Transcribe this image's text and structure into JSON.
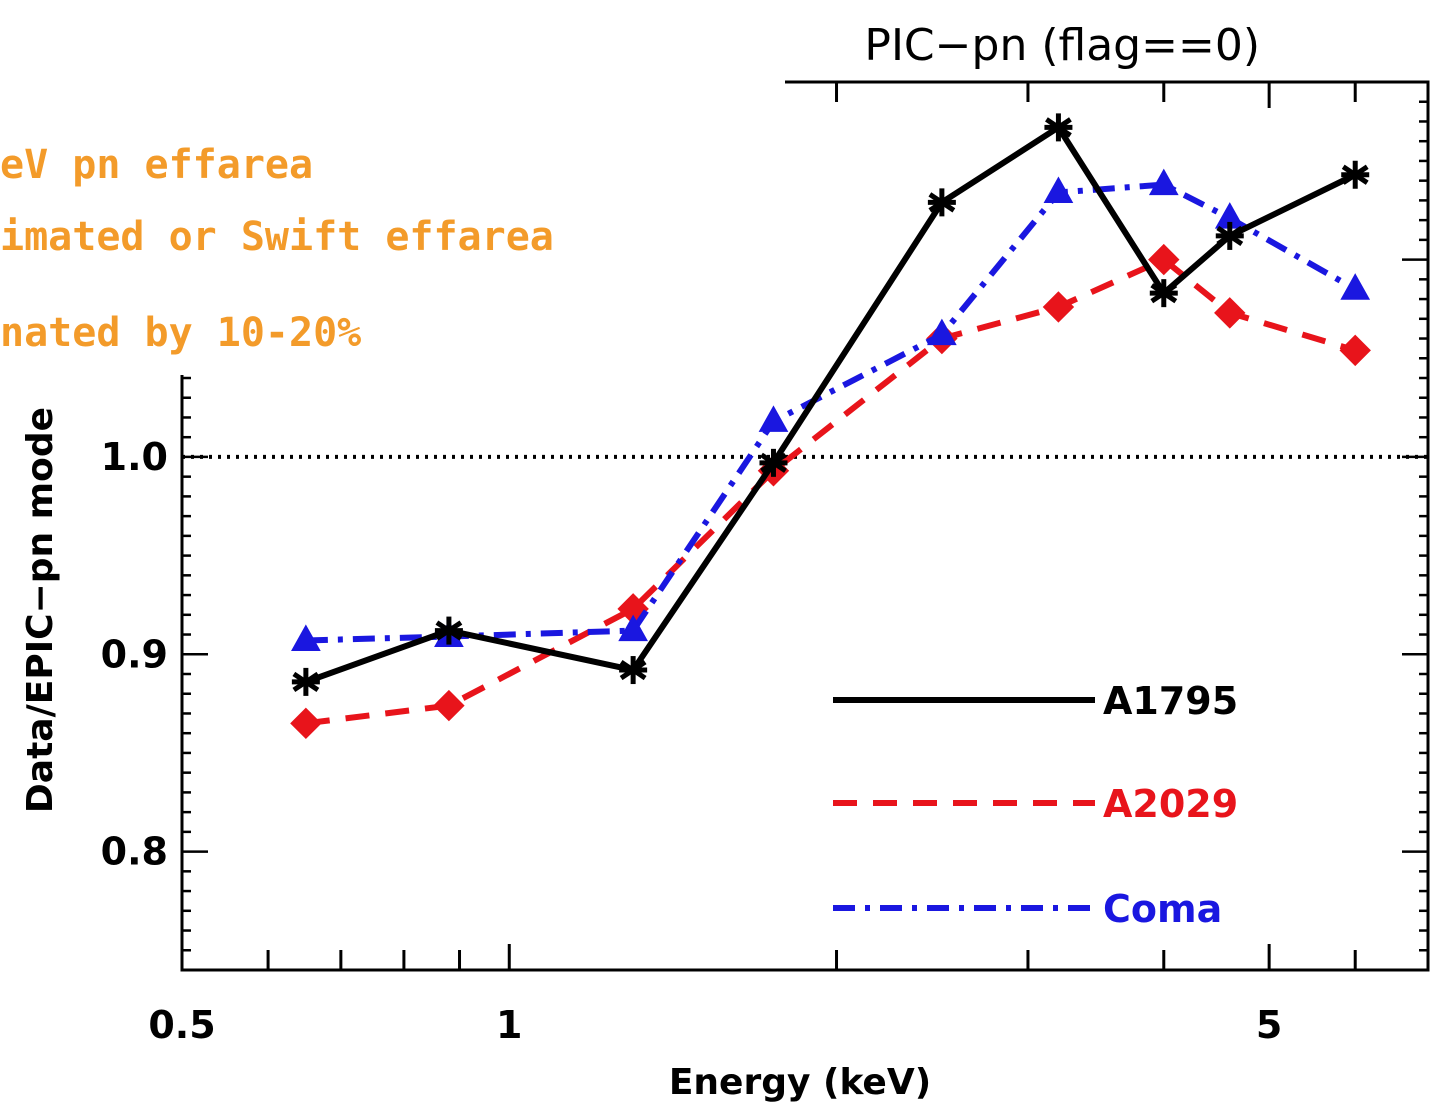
{
  "annotations": [
    "eV pn effarea",
    "imated or Swift effarea",
    "nated by 10-20%"
  ],
  "chart_data": {
    "type": "line",
    "title": "PIC−pn (flag==0)",
    "xlabel": "Energy (keV)",
    "ylabel": "Data/EPIC−pn mode",
    "xscale": "log",
    "xlim": [
      0.5,
      7.0
    ],
    "ylim": [
      0.74,
      1.19
    ],
    "x_ticks": [
      0.5,
      1,
      5
    ],
    "x_tick_labels": [
      "0.5",
      "1",
      "5"
    ],
    "y_ticks": [
      0.8,
      0.9,
      1.0
    ],
    "y_tick_labels": [
      "0.8",
      "0.9",
      "1.0"
    ],
    "reference_line": 1.0,
    "legend_position": "bottom-right",
    "x": [
      0.65,
      0.88,
      1.3,
      1.75,
      2.5,
      3.2,
      4.0,
      4.6,
      6.0
    ],
    "series": [
      {
        "name": "A1795",
        "color": "#000000",
        "dash": "solid",
        "marker": "star",
        "values": [
          0.886,
          0.912,
          0.892,
          0.997,
          1.129,
          1.167,
          1.083,
          1.112,
          1.143
        ]
      },
      {
        "name": "A2029",
        "color": "#e8141b",
        "dash": "dashed",
        "marker": "diamond",
        "values": [
          0.865,
          0.874,
          0.923,
          0.993,
          1.06,
          1.076,
          1.1,
          1.073,
          1.054
        ]
      },
      {
        "name": "Coma",
        "color": "#1a17e0",
        "dash": "dashdot",
        "marker": "triangle",
        "values": [
          0.907,
          0.909,
          0.912,
          1.018,
          1.062,
          1.134,
          1.138,
          1.121,
          1.085
        ]
      }
    ]
  }
}
